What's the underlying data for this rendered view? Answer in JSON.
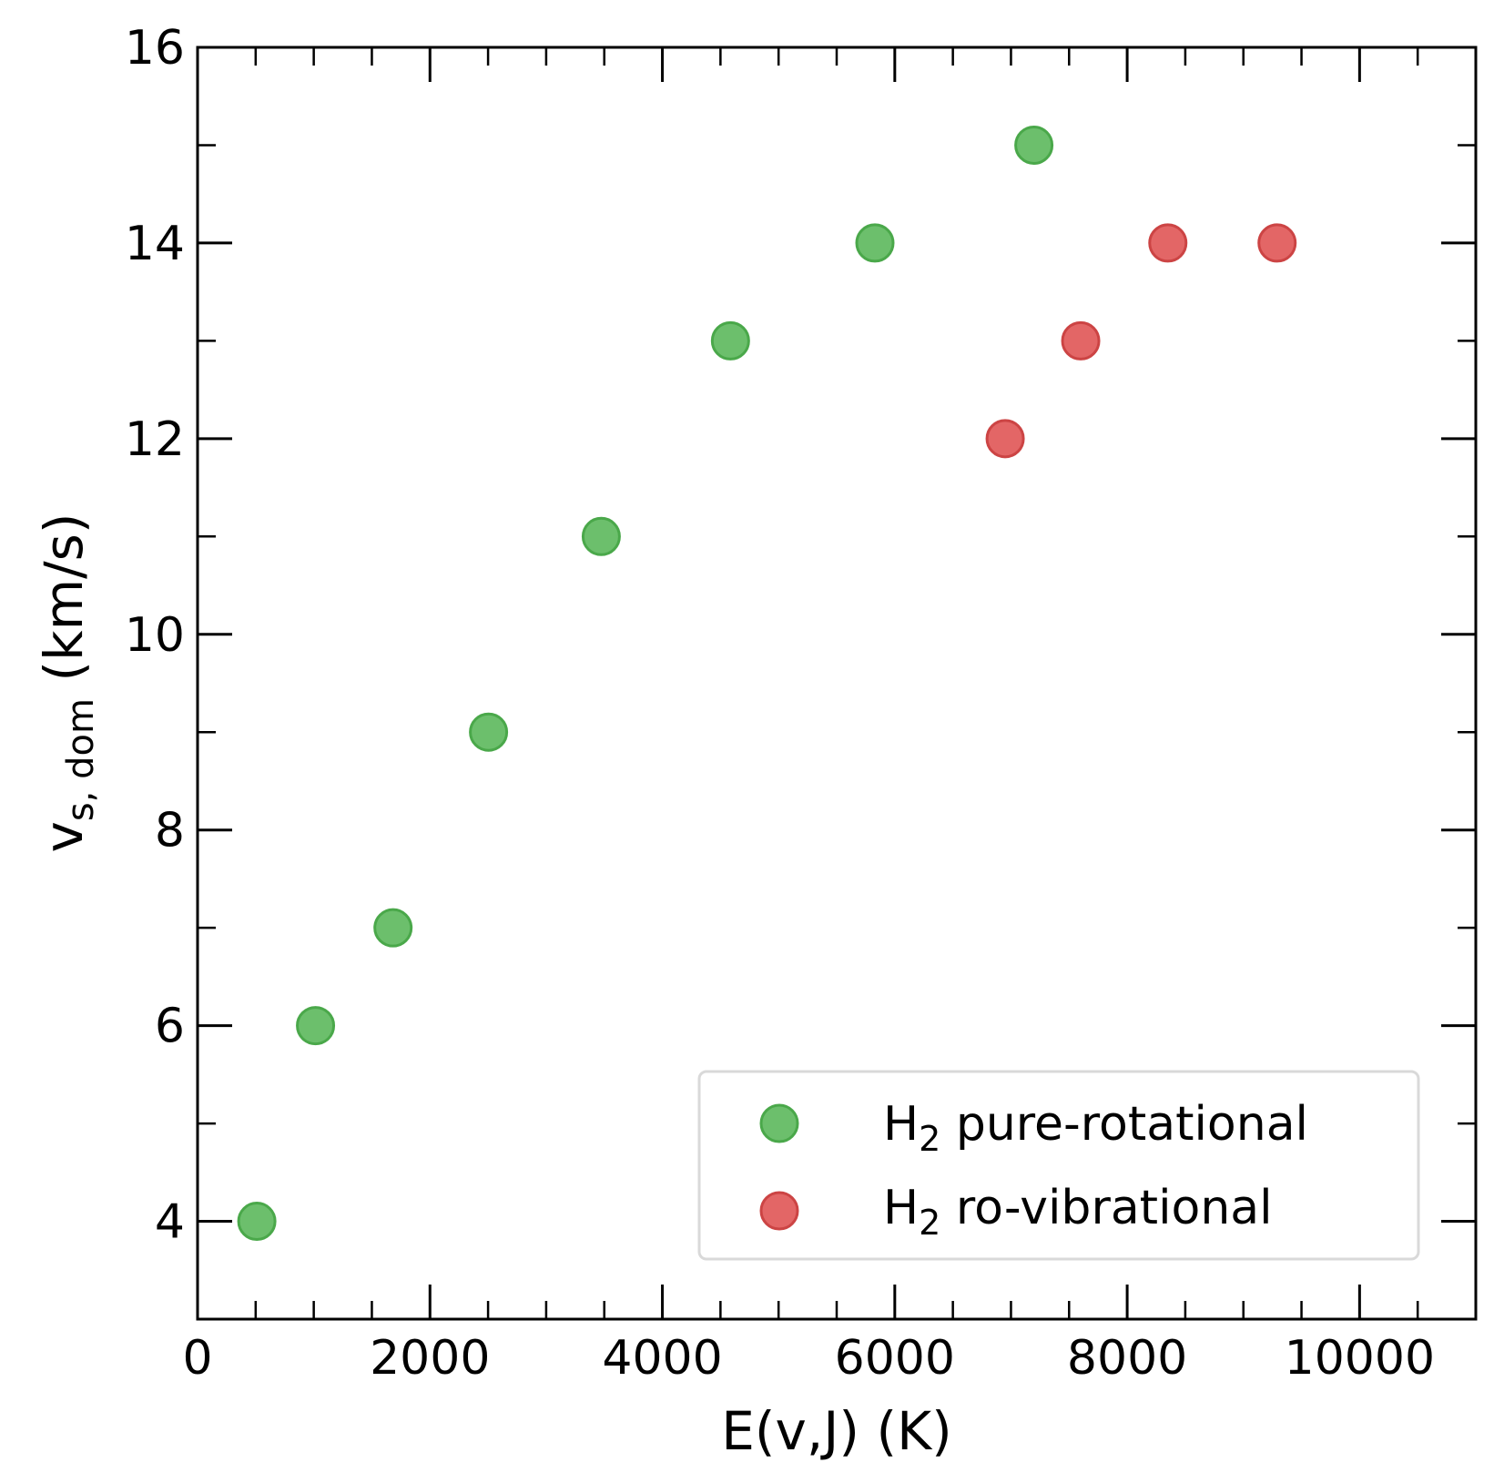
{
  "chart_data": {
    "type": "scatter",
    "title": "",
    "xlabel": "E(v,J) (K)",
    "ylabel_main": "v",
    "ylabel_sub": "s, dom",
    "ylabel_units": " (km/s)",
    "xlim": [
      0,
      11000
    ],
    "ylim": [
      3,
      16
    ],
    "x_ticks": [
      0,
      2000,
      4000,
      6000,
      8000,
      10000
    ],
    "x_tick_labels": [
      "0",
      "2000",
      "4000",
      "6000",
      "8000",
      "10000"
    ],
    "y_ticks": [
      4,
      6,
      8,
      10,
      12,
      14,
      16
    ],
    "y_tick_labels": [
      "4",
      "6",
      "8",
      "10",
      "12",
      "14",
      "16"
    ],
    "x_minor_step": 500,
    "y_minor_step": 1,
    "grid": false,
    "legend_position": "lower-right",
    "series": [
      {
        "name": "H2 pure-rotational",
        "label_main": "H",
        "label_sub": "2",
        "label_rest": " pure-rotational",
        "color": "#5cb85c",
        "edge_color": "#4aa84a",
        "x": [
          510,
          1015,
          1682,
          2504,
          3474,
          4586,
          5829,
          7197
        ],
        "y": [
          4,
          6,
          7,
          9,
          11,
          13,
          14,
          15
        ]
      },
      {
        "name": "H2 ro-vibrational",
        "label_main": "H",
        "label_sub": "2",
        "label_rest": " ro-vibrational",
        "color": "#e05555",
        "edge_color": "#cc4444",
        "x": [
          6950,
          7600,
          8350,
          9290
        ],
        "y": [
          12,
          13,
          14,
          14
        ]
      }
    ]
  }
}
